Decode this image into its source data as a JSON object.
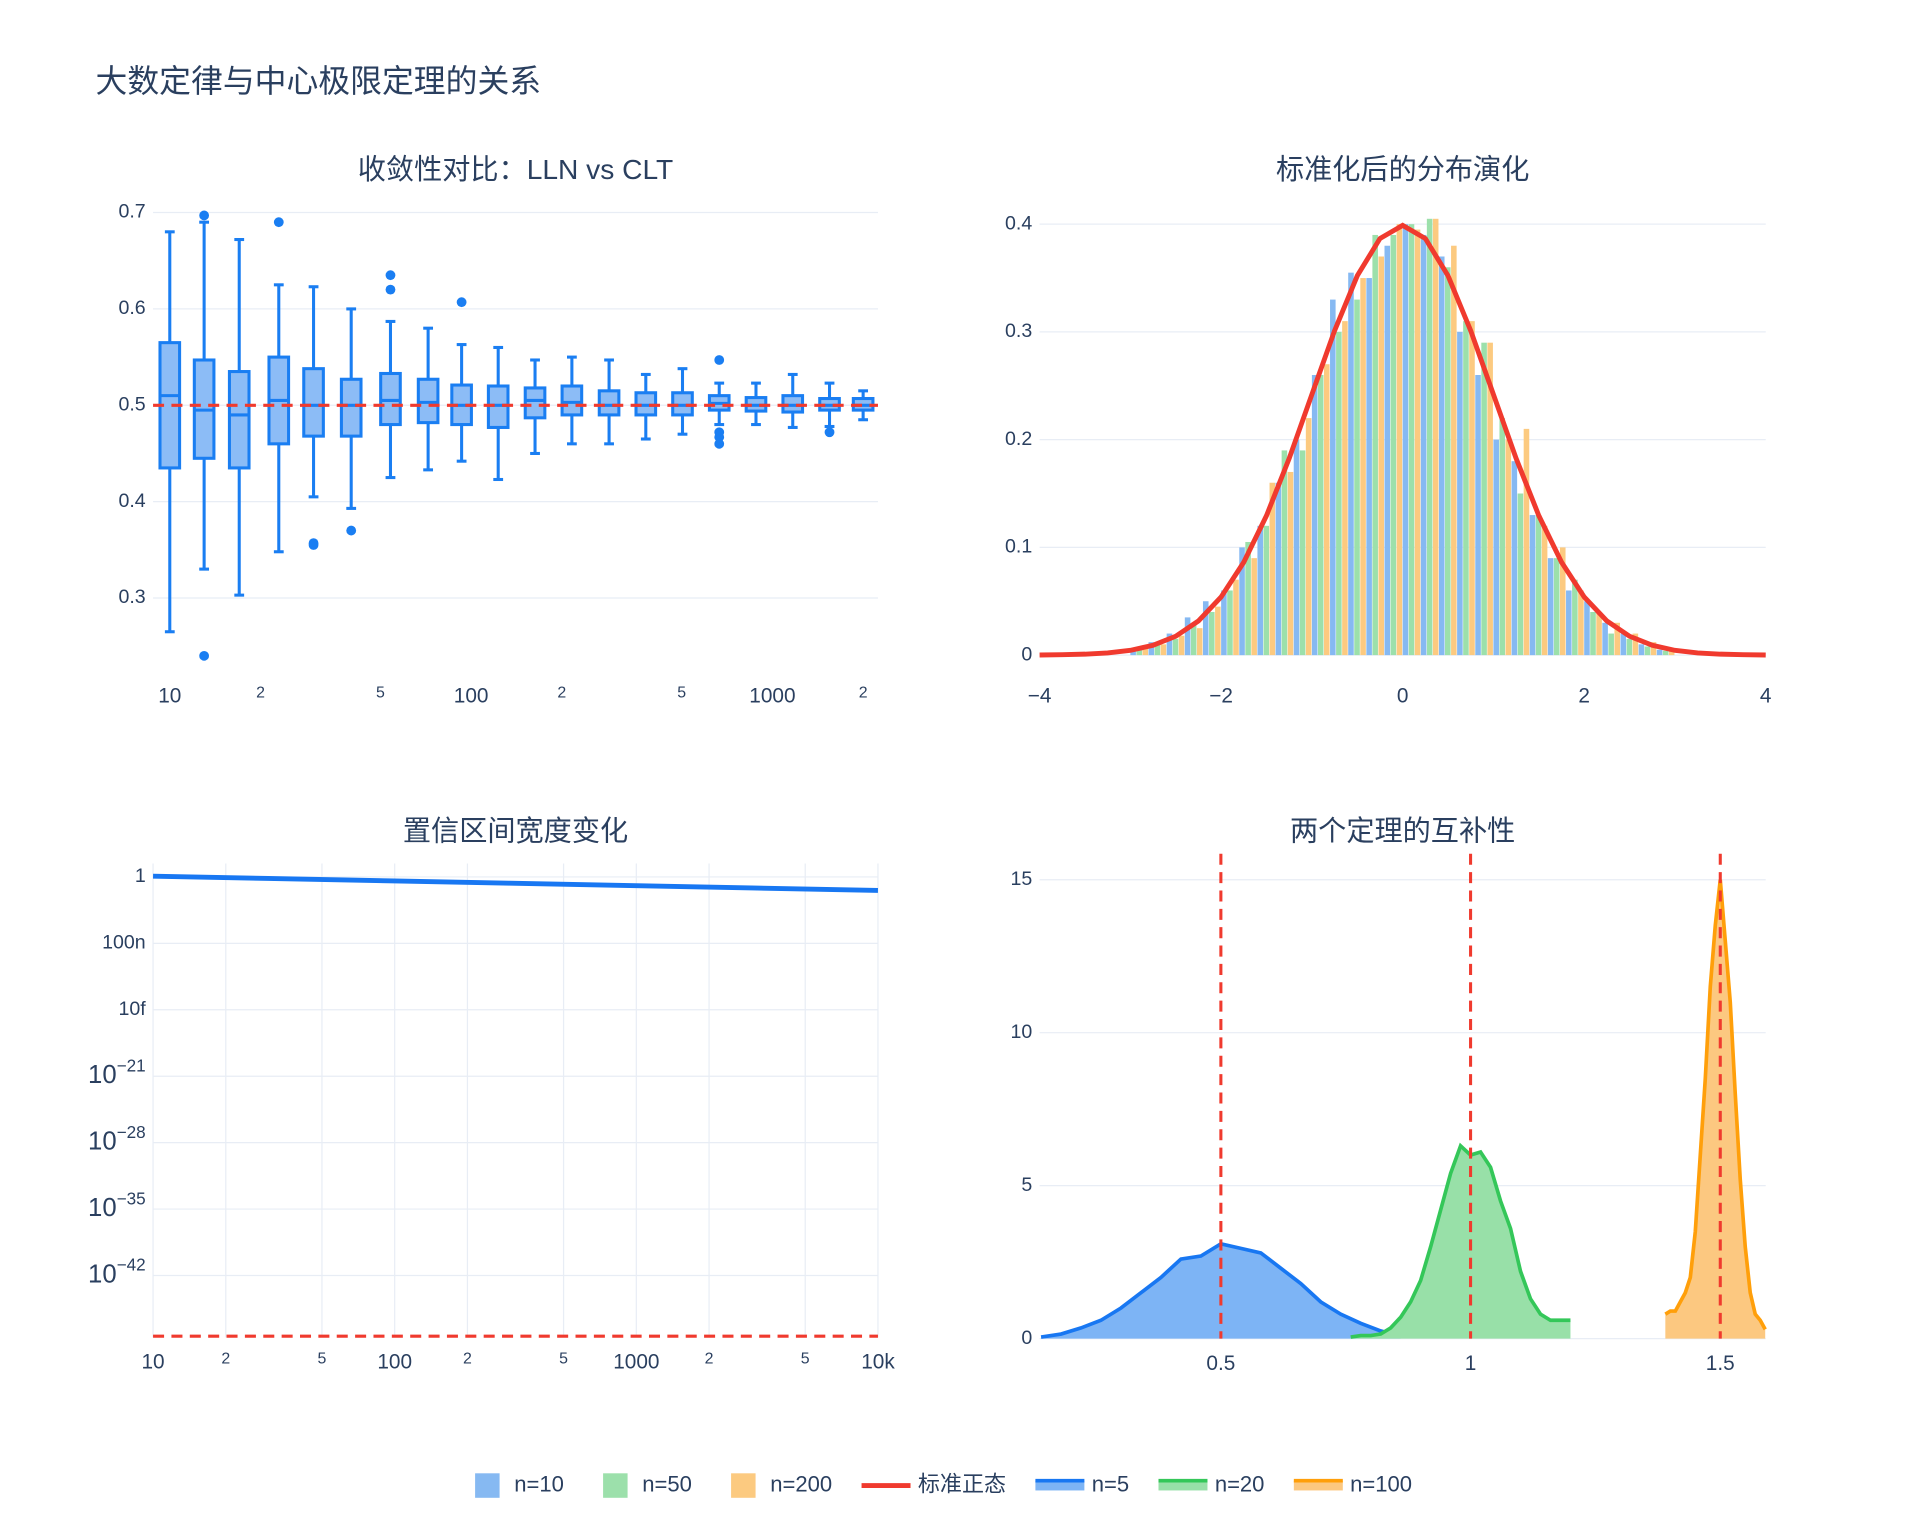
{
  "title": "大数定律与中心极限定理的关系",
  "legend": "bottom",
  "chart_data": [
    {
      "type": "box",
      "title": "收敛性对比：LLN vs CLT",
      "xscale": "log",
      "grid": true,
      "color": "#1a7ef2",
      "fill": "#8cbcf6",
      "x": [
        10,
        13,
        17,
        23,
        30,
        40,
        54,
        72,
        93,
        123,
        163,
        216,
        287,
        380,
        503,
        666,
        882,
        1168,
        1547,
        2000
      ],
      "boxes": [
        {
          "low": 0.265,
          "q1": 0.435,
          "median": 0.51,
          "q3": 0.565,
          "high": 0.68,
          "outliers": []
        },
        {
          "low": 0.33,
          "q1": 0.445,
          "median": 0.495,
          "q3": 0.547,
          "high": 0.69,
          "outliers": [
            0.697,
            0.24
          ]
        },
        {
          "low": 0.303,
          "q1": 0.435,
          "median": 0.49,
          "q3": 0.535,
          "high": 0.672,
          "outliers": []
        },
        {
          "low": 0.348,
          "q1": 0.46,
          "median": 0.505,
          "q3": 0.55,
          "high": 0.625,
          "outliers": [
            0.69
          ]
        },
        {
          "low": 0.405,
          "q1": 0.468,
          "median": 0.5,
          "q3": 0.538,
          "high": 0.623,
          "outliers": [
            0.357,
            0.355
          ]
        },
        {
          "low": 0.393,
          "q1": 0.468,
          "median": 0.5,
          "q3": 0.527,
          "high": 0.6,
          "outliers": [
            0.37
          ]
        },
        {
          "low": 0.425,
          "q1": 0.48,
          "median": 0.505,
          "q3": 0.533,
          "high": 0.587,
          "outliers": [
            0.635,
            0.62
          ]
        },
        {
          "low": 0.433,
          "q1": 0.482,
          "median": 0.503,
          "q3": 0.527,
          "high": 0.58,
          "outliers": []
        },
        {
          "low": 0.442,
          "q1": 0.48,
          "median": 0.5,
          "q3": 0.521,
          "high": 0.563,
          "outliers": [
            0.607
          ]
        },
        {
          "low": 0.423,
          "q1": 0.477,
          "median": 0.5,
          "q3": 0.52,
          "high": 0.56,
          "outliers": []
        },
        {
          "low": 0.45,
          "q1": 0.487,
          "median": 0.505,
          "q3": 0.518,
          "high": 0.547,
          "outliers": []
        },
        {
          "low": 0.46,
          "q1": 0.49,
          "median": 0.503,
          "q3": 0.52,
          "high": 0.55,
          "outliers": []
        },
        {
          "low": 0.46,
          "q1": 0.49,
          "median": 0.5,
          "q3": 0.515,
          "high": 0.547,
          "outliers": []
        },
        {
          "low": 0.465,
          "q1": 0.49,
          "median": 0.5,
          "q3": 0.513,
          "high": 0.532,
          "outliers": []
        },
        {
          "low": 0.47,
          "q1": 0.49,
          "median": 0.5,
          "q3": 0.513,
          "high": 0.538,
          "outliers": []
        },
        {
          "low": 0.48,
          "q1": 0.495,
          "median": 0.502,
          "q3": 0.51,
          "high": 0.523,
          "outliers": [
            0.547,
            0.472,
            0.467,
            0.46
          ]
        },
        {
          "low": 0.48,
          "q1": 0.494,
          "median": 0.5,
          "q3": 0.508,
          "high": 0.523,
          "outliers": []
        },
        {
          "low": 0.477,
          "q1": 0.493,
          "median": 0.5,
          "q3": 0.51,
          "high": 0.532,
          "outliers": []
        },
        {
          "low": 0.478,
          "q1": 0.495,
          "median": 0.5,
          "q3": 0.507,
          "high": 0.523,
          "outliers": [
            0.472
          ]
        },
        {
          "low": 0.485,
          "q1": 0.495,
          "median": 0.5,
          "q3": 0.507,
          "high": 0.515,
          "outliers": []
        }
      ],
      "hline": 0.5,
      "ref_color": "#f03a2e",
      "xlim": [
        8.8,
        2240
      ],
      "ylim": [
        0.224,
        0.717
      ],
      "xticks": [
        10,
        {
          "value": 20,
          "label": "2"
        },
        {
          "value": 50,
          "label": "5"
        },
        100,
        {
          "value": 200,
          "label": "2"
        },
        {
          "value": 500,
          "label": "5"
        },
        1000,
        {
          "value": 2000,
          "label": "2"
        }
      ],
      "yticks": [
        0.3,
        0.4,
        0.5,
        0.6,
        0.7
      ]
    },
    {
      "type": "histogram",
      "title": "标准化后的分布演化",
      "grid": true,
      "bins": [
        -3,
        -2.8,
        -2.6,
        -2.4,
        -2.2,
        -2,
        -1.8,
        -1.6,
        -1.4,
        -1.2,
        -1,
        -0.8,
        -0.6,
        -0.4,
        -0.2,
        0,
        0.2,
        0.4,
        0.6,
        0.8,
        1,
        1.2,
        1.4,
        1.6,
        1.8,
        2,
        2.2,
        2.4,
        2.6,
        2.8,
        3
      ],
      "series": [
        {
          "name": "n=10",
          "color": "#86b9f2",
          "values": [
            0.005,
            0.012,
            0.02,
            0.035,
            0.05,
            0.06,
            0.1,
            0.12,
            0.16,
            0.2,
            0.26,
            0.33,
            0.355,
            0.35,
            0.38,
            0.4,
            0.39,
            0.37,
            0.3,
            0.26,
            0.2,
            0.18,
            0.13,
            0.09,
            0.06,
            0.05,
            0.03,
            0.02,
            0.01,
            0.005
          ]
        },
        {
          "name": "n=50",
          "color": "#9ce0ab",
          "values": [
            0.006,
            0.01,
            0.015,
            0.03,
            0.04,
            0.06,
            0.105,
            0.12,
            0.19,
            0.19,
            0.26,
            0.3,
            0.33,
            0.39,
            0.39,
            0.4,
            0.405,
            0.36,
            0.31,
            0.29,
            0.22,
            0.15,
            0.13,
            0.09,
            0.07,
            0.04,
            0.02,
            0.015,
            0.008,
            0.004
          ]
        },
        {
          "name": "n=200",
          "color": "#fcca80",
          "values": [
            0.007,
            0.01,
            0.018,
            0.025,
            0.045,
            0.07,
            0.09,
            0.16,
            0.17,
            0.22,
            0.27,
            0.31,
            0.35,
            0.37,
            0.4,
            0.395,
            0.405,
            0.38,
            0.31,
            0.29,
            0.2,
            0.21,
            0.12,
            0.1,
            0.06,
            0.04,
            0.03,
            0.02,
            0.012,
            0.006
          ]
        }
      ],
      "curve": {
        "name": "标准正态",
        "color": "#f03a2e",
        "x": [
          -4,
          -3.75,
          -3.5,
          -3.25,
          -3,
          -2.75,
          -2.5,
          -2.25,
          -2,
          -1.75,
          -1.5,
          -1.25,
          -1,
          -0.75,
          -0.5,
          -0.25,
          0,
          0.25,
          0.5,
          0.75,
          1,
          1.25,
          1.5,
          1.75,
          2,
          2.25,
          2.5,
          2.75,
          3,
          3.25,
          3.5,
          3.75,
          4
        ],
        "values": [
          0.0001,
          0.0004,
          0.0009,
          0.002,
          0.0044,
          0.0091,
          0.0175,
          0.0317,
          0.054,
          0.0863,
          0.1295,
          0.1826,
          0.242,
          0.3011,
          0.3521,
          0.3867,
          0.3989,
          0.3867,
          0.3521,
          0.3011,
          0.242,
          0.1826,
          0.1295,
          0.0863,
          0.054,
          0.0317,
          0.0175,
          0.0091,
          0.0044,
          0.002,
          0.0009,
          0.0004,
          0.0001
        ]
      },
      "xlim": [
        -4,
        4
      ],
      "ylim": [
        -0.015,
        0.426
      ],
      "xticks": [
        {
          "value": -4,
          "label": "−4"
        },
        {
          "value": -2,
          "label": "−2"
        },
        0,
        2,
        4
      ],
      "yticks": [
        0,
        0.1,
        0.2,
        0.3,
        0.4
      ]
    },
    {
      "type": "line",
      "title": "置信区间宽度变化",
      "xscale": "log",
      "yscale": "log",
      "grid": true,
      "xgrid": true,
      "color": "#1877f2",
      "x": [
        10,
        30,
        100,
        300,
        1000,
        3000,
        10000
      ],
      "values": [
        1.2,
        0.69,
        0.38,
        0.22,
        0.12,
        0.069,
        0.038
      ],
      "hline": 4e-49,
      "ref_color": "#f03a2e",
      "xlim": [
        10,
        10000
      ],
      "ylim": [
        3e-49,
        26
      ],
      "xticks": [
        10,
        {
          "value": 20,
          "label": "2"
        },
        {
          "value": 50,
          "label": "5"
        },
        100,
        {
          "value": 200,
          "label": "2"
        },
        {
          "value": 500,
          "label": "5"
        },
        1000,
        {
          "value": 2000,
          "label": "2"
        },
        {
          "value": 5000,
          "label": "5"
        },
        {
          "value": 10000,
          "label": "10k"
        }
      ],
      "yticks": [
        1,
        {
          "value": 1e-07,
          "label": "100n"
        },
        {
          "value": 1e-14,
          "label": "10f"
        },
        {
          "value": 1e-21,
          "label": "10",
          "exponent": "−21"
        },
        {
          "value": 1e-28,
          "label": "10",
          "exponent": "−28"
        },
        {
          "value": 1e-35,
          "label": "10",
          "exponent": "−35"
        },
        {
          "value": 1e-42,
          "label": "10",
          "exponent": "−42"
        }
      ]
    },
    {
      "type": "area",
      "title": "两个定理的互补性",
      "grid": true,
      "series": [
        {
          "name": "n=5",
          "color": "#1877f2",
          "fill": "#7db4f5",
          "x": [
            0.14,
            0.18,
            0.22,
            0.26,
            0.3,
            0.34,
            0.38,
            0.42,
            0.46,
            0.5,
            0.54,
            0.58,
            0.62,
            0.66,
            0.7,
            0.74,
            0.78,
            0.82,
            0.86
          ],
          "values": [
            0.05,
            0.15,
            0.35,
            0.6,
            1.0,
            1.5,
            2.0,
            2.6,
            2.7,
            3.1,
            2.95,
            2.8,
            2.3,
            1.8,
            1.2,
            0.8,
            0.5,
            0.25,
            0.08
          ]
        },
        {
          "name": "n=20",
          "color": "#34c759",
          "fill": "#98e0a8",
          "x": [
            0.76,
            0.78,
            0.8,
            0.82,
            0.84,
            0.86,
            0.88,
            0.9,
            0.92,
            0.94,
            0.96,
            0.98,
            1.0,
            1.02,
            1.04,
            1.06,
            1.08,
            1.1,
            1.12,
            1.14,
            1.16,
            1.18,
            1.2
          ],
          "values": [
            0.05,
            0.1,
            0.1,
            0.15,
            0.35,
            0.7,
            1.2,
            1.9,
            3.0,
            4.2,
            5.4,
            6.3,
            6.0,
            6.1,
            5.6,
            4.5,
            3.6,
            2.2,
            1.3,
            0.8,
            0.6,
            0.6,
            0.6
          ]
        },
        {
          "name": "n=100",
          "color": "#ff9f0a",
          "fill": "#fcc880",
          "x": [
            1.39,
            1.4,
            1.41,
            1.42,
            1.43,
            1.44,
            1.45,
            1.46,
            1.47,
            1.48,
            1.49,
            1.5,
            1.51,
            1.52,
            1.53,
            1.54,
            1.55,
            1.56,
            1.57,
            1.58,
            1.59
          ],
          "values": [
            0.8,
            0.9,
            0.9,
            1.2,
            1.5,
            2.0,
            3.5,
            6.0,
            8.5,
            11.5,
            13.5,
            15.0,
            13.0,
            11.0,
            8.0,
            5.2,
            3.0,
            1.5,
            0.8,
            0.6,
            0.3
          ]
        }
      ],
      "vlines": [
        0.5,
        1,
        1.5
      ],
      "ref_color": "#f03a2e",
      "xlim": [
        0.137,
        1.591
      ],
      "ylim": [
        0,
        15.85
      ],
      "xticks": [
        0.5,
        1,
        1.5
      ],
      "yticks": [
        0,
        5,
        10,
        15
      ]
    }
  ]
}
